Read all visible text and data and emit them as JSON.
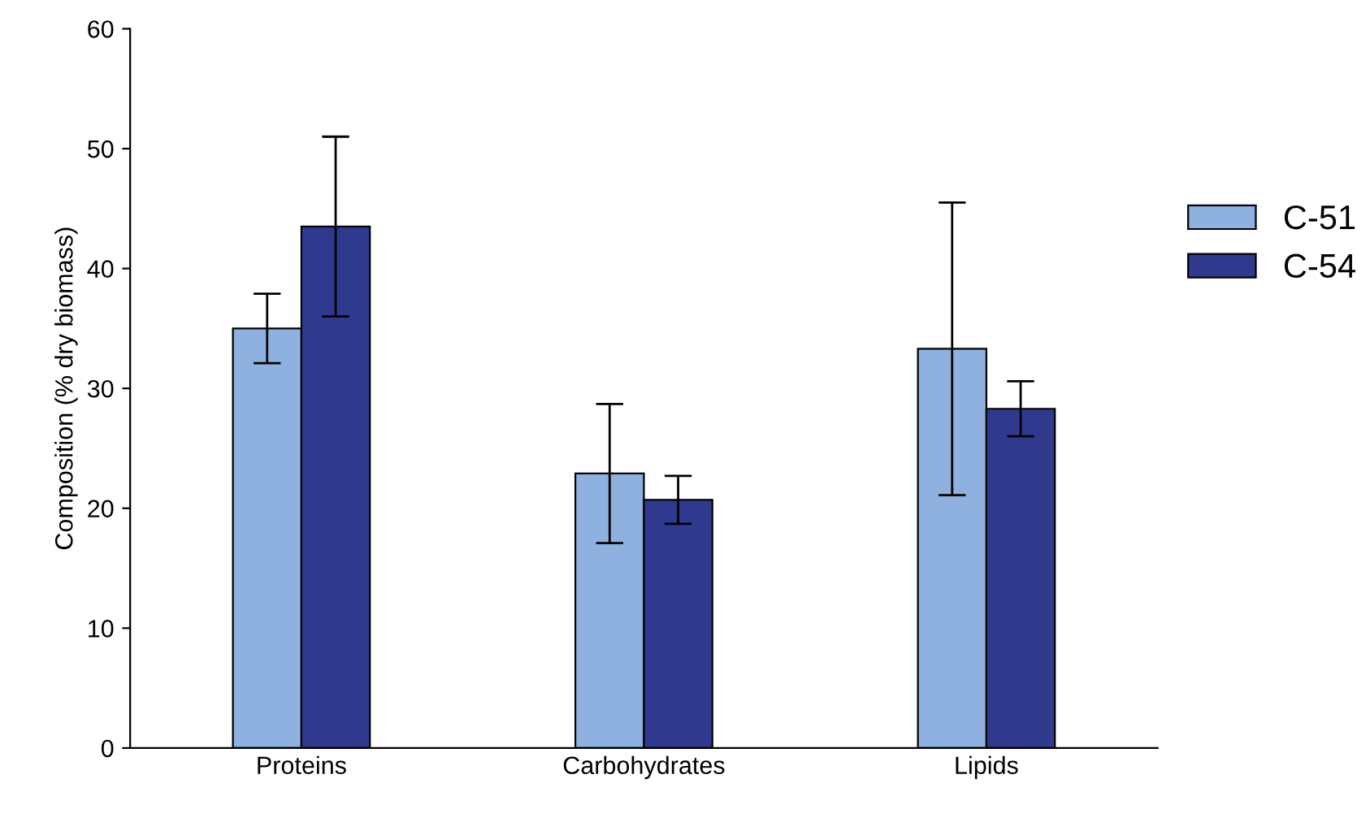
{
  "chart_data": {
    "type": "bar",
    "ylabel": "Composition (% dry biomass)",
    "categories": [
      "Proteins",
      "Carbohydrates",
      "Lipids"
    ],
    "series": [
      {
        "name": "C-51",
        "color": "#8fb1e0",
        "values": [
          35,
          22.9,
          33.3
        ],
        "errors": [
          2.9,
          5.8,
          12.2
        ]
      },
      {
        "name": "C-54",
        "color": "#2f3a8f",
        "values": [
          43.5,
          20.7,
          28.3
        ],
        "errors": [
          7.5,
          2,
          2.3
        ]
      }
    ],
    "ylim": [
      0,
      60
    ],
    "yticks": [
      0,
      10,
      20,
      30,
      40,
      50,
      60
    ],
    "grid": false,
    "legend": "right"
  }
}
